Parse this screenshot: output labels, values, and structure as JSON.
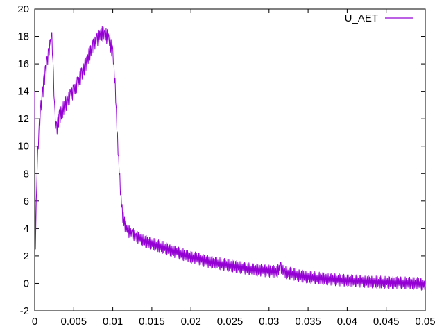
{
  "chart_data": {
    "type": "line",
    "title": "",
    "xlabel": "",
    "ylabel": "",
    "xlim": [
      0,
      0.05
    ],
    "ylim": [
      -2,
      20
    ],
    "x_ticks": [
      "0",
      "0.005",
      "0.01",
      "0.015",
      "0.02",
      "0.025",
      "0.03",
      "0.035",
      "0.04",
      "0.045",
      "0.05"
    ],
    "y_ticks": [
      "-2",
      "0",
      "2",
      "4",
      "6",
      "8",
      "10",
      "12",
      "14",
      "16",
      "18",
      "20"
    ],
    "x_tick_values": [
      0,
      0.005,
      0.01,
      0.015,
      0.02,
      0.025,
      0.03,
      0.035,
      0.04,
      0.045,
      0.05
    ],
    "y_tick_values": [
      -2,
      0,
      2,
      4,
      6,
      8,
      10,
      12,
      14,
      16,
      18,
      20
    ],
    "grid": false,
    "legend_position": "top-right",
    "series": [
      {
        "name": "U_AET",
        "color": "#9400d3",
        "x": [
          0,
          0.0001,
          0.0002,
          0.0004,
          0.0006,
          0.0008,
          0.001,
          0.0012,
          0.0014,
          0.0016,
          0.0018,
          0.002,
          0.0022,
          0.0024,
          0.0026,
          0.0028,
          0.003,
          0.0032,
          0.0035,
          0.0038,
          0.0042,
          0.0046,
          0.005,
          0.0055,
          0.006,
          0.0065,
          0.007,
          0.0075,
          0.008,
          0.0085,
          0.009,
          0.0095,
          0.01,
          0.0103,
          0.0106,
          0.0109,
          0.0112,
          0.0115,
          0.012,
          0.0125,
          0.013,
          0.014,
          0.015,
          0.016,
          0.017,
          0.018,
          0.019,
          0.02,
          0.021,
          0.022,
          0.023,
          0.024,
          0.025,
          0.026,
          0.027,
          0.028,
          0.029,
          0.03,
          0.031,
          0.0315,
          0.032,
          0.033,
          0.034,
          0.035,
          0.036,
          0.037,
          0.038,
          0.039,
          0.04,
          0.041,
          0.042,
          0.043,
          0.044,
          0.045,
          0.046,
          0.047,
          0.048,
          0.049,
          0.05
        ],
        "y": [
          14,
          2.5,
          6,
          9.5,
          11.5,
          12.8,
          13.8,
          14.8,
          15.5,
          16.2,
          16.8,
          17.5,
          17.9,
          15,
          12,
          11.2,
          11.8,
          12.2,
          12.5,
          12.9,
          13.3,
          13.7,
          14,
          14.6,
          15.2,
          15.9,
          16.7,
          17.3,
          17.8,
          18.2,
          18.2,
          17.8,
          16.8,
          14.5,
          10.5,
          7.5,
          5.2,
          4.3,
          3.8,
          3.6,
          3.4,
          3.1,
          2.9,
          2.7,
          2.5,
          2.3,
          2.1,
          1.9,
          1.8,
          1.6,
          1.5,
          1.4,
          1.3,
          1.2,
          1.1,
          1.0,
          0.95,
          0.9,
          0.85,
          1.2,
          0.8,
          0.7,
          0.55,
          0.45,
          0.4,
          0.35,
          0.3,
          0.25,
          0.2,
          0.18,
          0.15,
          0.12,
          0.1,
          0.08,
          0.06,
          0.04,
          0.02,
          0.0,
          -0.1
        ]
      }
    ]
  }
}
